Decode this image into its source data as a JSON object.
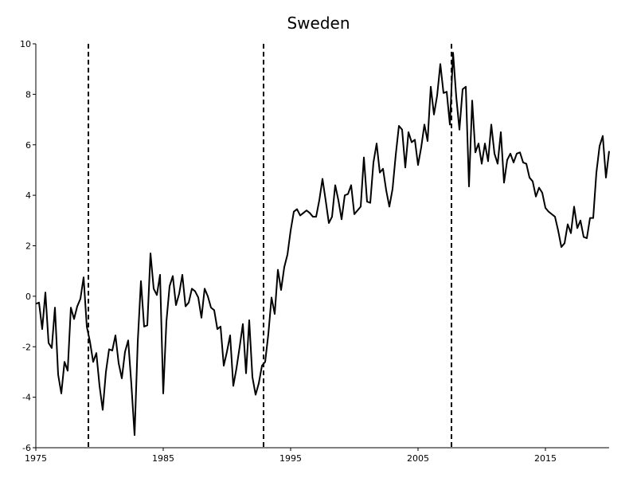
{
  "chart_data": {
    "type": "line",
    "title": "Sweden",
    "x": [
      1975,
      1975.25,
      1975.5,
      1975.75,
      1976,
      1976.25,
      1976.5,
      1976.75,
      1977,
      1977.25,
      1977.5,
      1977.75,
      1978,
      1978.25,
      1978.5,
      1978.75,
      1979,
      1979.25,
      1979.5,
      1979.75,
      1980,
      1980.25,
      1980.5,
      1980.75,
      1981,
      1981.25,
      1981.5,
      1981.75,
      1982,
      1982.25,
      1982.5,
      1982.75,
      1983,
      1983.25,
      1983.5,
      1983.75,
      1984,
      1984.25,
      1984.5,
      1984.75,
      1985,
      1985.25,
      1985.5,
      1985.75,
      1986,
      1986.25,
      1986.5,
      1986.75,
      1987,
      1987.25,
      1987.5,
      1987.75,
      1988,
      1988.25,
      1988.5,
      1988.75,
      1989,
      1989.25,
      1989.5,
      1989.75,
      1990,
      1990.25,
      1990.5,
      1990.75,
      1991,
      1991.25,
      1991.5,
      1991.75,
      1992,
      1992.25,
      1992.5,
      1992.75,
      1993,
      1993.25,
      1993.5,
      1993.75,
      1994,
      1994.25,
      1994.5,
      1994.75,
      1995,
      1995.25,
      1995.5,
      1995.75,
      1996,
      1996.25,
      1996.5,
      1996.75,
      1997,
      1997.25,
      1997.5,
      1997.75,
      1998,
      1998.25,
      1998.5,
      1998.75,
      1999,
      1999.25,
      1999.5,
      1999.75,
      2000,
      2000.25,
      2000.5,
      2000.75,
      2001,
      2001.25,
      2001.5,
      2001.75,
      2002,
      2002.25,
      2002.5,
      2002.75,
      2003,
      2003.25,
      2003.5,
      2003.75,
      2004,
      2004.25,
      2004.5,
      2004.75,
      2005,
      2005.25,
      2005.5,
      2005.75,
      2006,
      2006.25,
      2006.5,
      2006.75,
      2007,
      2007.25,
      2007.5,
      2007.75,
      2008,
      2008.25,
      2008.5,
      2008.75,
      2009,
      2009.25,
      2009.5,
      2009.75,
      2010,
      2010.25,
      2010.5,
      2010.75,
      2011,
      2011.25,
      2011.5,
      2011.75,
      2012,
      2012.25,
      2012.5,
      2012.75,
      2013,
      2013.25,
      2013.5,
      2013.75,
      2014,
      2014.25,
      2014.5,
      2014.75,
      2015,
      2015.25,
      2015.5,
      2015.75,
      2016,
      2016.25,
      2016.5,
      2016.75,
      2017,
      2017.25,
      2017.5,
      2017.75,
      2018,
      2018.25,
      2018.5,
      2018.75,
      2019,
      2019.25,
      2019.5,
      2019.75,
      2020
    ],
    "values": [
      -0.3,
      -0.25,
      -1.3,
      0.15,
      -1.85,
      -2.05,
      -0.45,
      -3.1,
      -3.85,
      -2.6,
      -2.95,
      -0.45,
      -0.9,
      -0.4,
      -0.1,
      0.75,
      -1.2,
      -1.8,
      -2.6,
      -2.25,
      -3.55,
      -4.5,
      -3.0,
      -2.1,
      -2.15,
      -1.55,
      -2.65,
      -3.25,
      -2.2,
      -1.75,
      -3.5,
      -5.5,
      -1.8,
      0.6,
      -1.2,
      -1.15,
      1.7,
      0.3,
      0.05,
      0.85,
      -3.85,
      -1.0,
      0.4,
      0.8,
      -0.35,
      0.1,
      0.85,
      -0.4,
      -0.25,
      0.3,
      0.2,
      -0.05,
      -0.85,
      0.3,
      0.0,
      -0.45,
      -0.55,
      -1.3,
      -1.2,
      -2.75,
      -2.2,
      -1.55,
      -3.55,
      -2.85,
      -2.0,
      -1.1,
      -3.05,
      -0.95,
      -3.2,
      -3.9,
      -3.45,
      -2.75,
      -2.6,
      -1.5,
      -0.05,
      -0.7,
      1.05,
      0.25,
      1.15,
      1.65,
      2.6,
      3.35,
      3.45,
      3.2,
      3.3,
      3.4,
      3.3,
      3.15,
      3.15,
      3.8,
      4.65,
      3.8,
      2.9,
      3.15,
      4.4,
      3.8,
      3.05,
      4.0,
      4.05,
      4.4,
      3.25,
      3.4,
      3.55,
      5.5,
      3.75,
      3.7,
      5.3,
      6.05,
      4.9,
      5.05,
      4.2,
      3.55,
      4.25,
      5.6,
      6.75,
      6.6,
      5.1,
      6.5,
      6.1,
      6.2,
      5.2,
      5.9,
      6.8,
      6.15,
      8.3,
      7.2,
      7.95,
      9.2,
      8.05,
      8.1,
      6.8,
      9.65,
      7.9,
      6.6,
      8.2,
      8.3,
      4.35,
      7.75,
      5.7,
      6.05,
      5.25,
      6.05,
      5.35,
      6.8,
      5.65,
      5.25,
      6.5,
      4.5,
      5.4,
      5.65,
      5.3,
      5.65,
      5.7,
      5.3,
      5.25,
      4.7,
      4.55,
      3.95,
      4.3,
      4.1,
      3.5,
      3.35,
      3.25,
      3.15,
      2.6,
      1.95,
      2.1,
      2.85,
      2.5,
      3.55,
      2.7,
      3.0,
      2.35,
      2.3,
      3.1,
      3.1,
      4.9,
      5.95,
      6.35,
      4.7,
      5.75
    ],
    "color": "#000000",
    "xlim": [
      1975,
      2020
    ],
    "xticks": [
      1975,
      1985,
      1995,
      2005,
      2015
    ],
    "ylim": [
      -6,
      10
    ],
    "yticks": [
      -6,
      -4,
      -2,
      0,
      2,
      4,
      6,
      8,
      10
    ],
    "vlines": [
      1979.125,
      1992.875,
      2007.625
    ]
  }
}
